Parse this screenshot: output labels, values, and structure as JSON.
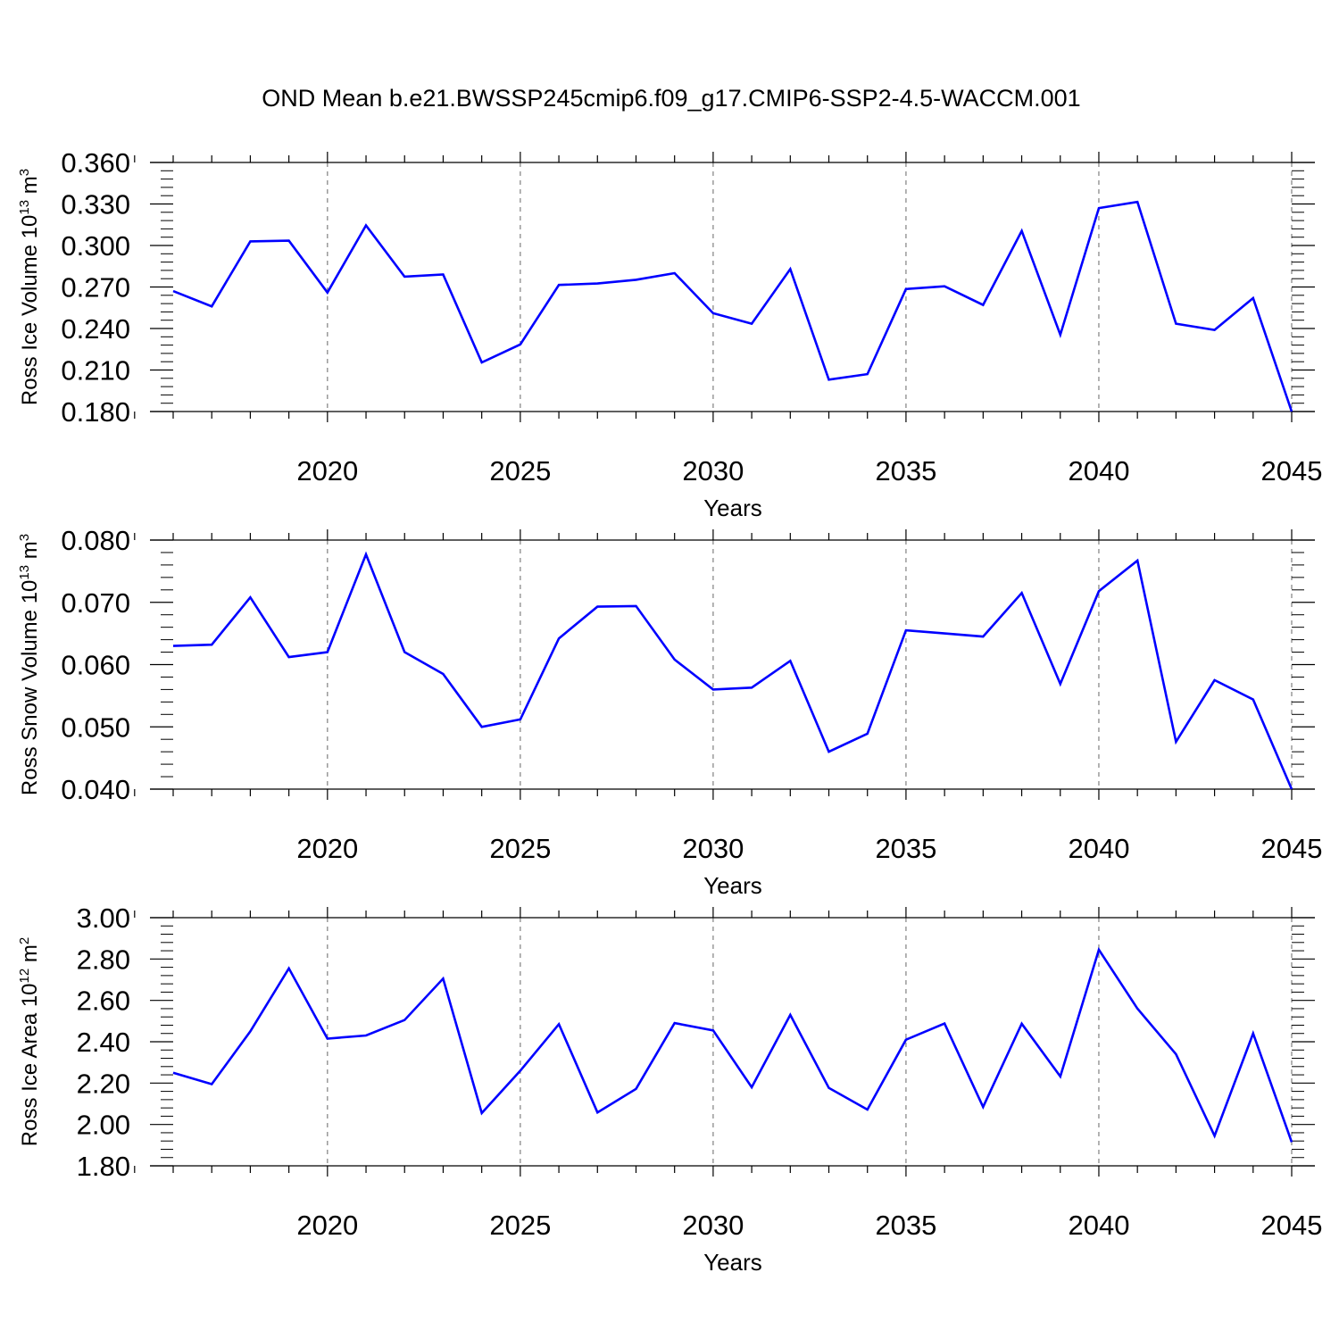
{
  "title": "OND Mean b.e21.BWSSP245cmip6.f09_g17.CMIP6-SSP2-4.5-WACCM.001",
  "colors": {
    "line": "#0000ff",
    "axis": "#000000",
    "grid": "#808080"
  },
  "chart_data": [
    {
      "type": "line",
      "ylabel": {
        "text": "Ross Ice Volume 10",
        "exp": "13",
        "unit": "m",
        "unit_exp": "3"
      },
      "xlabel": "Years",
      "xlim": [
        2016,
        2045
      ],
      "ylim": [
        0.18,
        0.36
      ],
      "yticks": [
        "0.180",
        "0.210",
        "0.240",
        "0.270",
        "0.300",
        "0.330",
        "0.360"
      ],
      "xticks": [
        "2020",
        "2025",
        "2030",
        "2035",
        "2040",
        "2045"
      ],
      "grid": "dashed vertical at major x ticks",
      "x": [
        2016,
        2017,
        2018,
        2019,
        2020,
        2021,
        2022,
        2023,
        2024,
        2025,
        2026,
        2027,
        2028,
        2029,
        2030,
        2031,
        2032,
        2033,
        2034,
        2035,
        2036,
        2037,
        2038,
        2039,
        2040,
        2041,
        2042,
        2043,
        2044,
        2045
      ],
      "values": [
        0.267,
        0.256,
        0.303,
        0.3035,
        0.266,
        0.3145,
        0.2775,
        0.279,
        0.2155,
        0.2285,
        0.2715,
        0.2725,
        0.2752,
        0.28,
        0.251,
        0.2435,
        0.283,
        0.203,
        0.207,
        0.2685,
        0.2705,
        0.257,
        0.3105,
        0.2355,
        0.327,
        0.3315,
        0.2435,
        0.239,
        0.262,
        0.18
      ]
    },
    {
      "type": "line",
      "ylabel": {
        "text": "Ross Snow Volume 10",
        "exp": "13",
        "unit": "m",
        "unit_exp": "3"
      },
      "xlabel": "Years",
      "xlim": [
        2016,
        2045
      ],
      "ylim": [
        0.04,
        0.08
      ],
      "yticks": [
        "0.040",
        "0.050",
        "0.060",
        "0.070",
        "0.080"
      ],
      "xticks": [
        "2020",
        "2025",
        "2030",
        "2035",
        "2040",
        "2045"
      ],
      "grid": "dashed vertical at major x ticks",
      "x": [
        2016,
        2017,
        2018,
        2019,
        2020,
        2021,
        2022,
        2023,
        2024,
        2025,
        2026,
        2027,
        2028,
        2029,
        2030,
        2031,
        2032,
        2033,
        2034,
        2035,
        2036,
        2037,
        2038,
        2039,
        2040,
        2041,
        2042,
        2043,
        2044,
        2045
      ],
      "values": [
        0.063,
        0.0632,
        0.0708,
        0.0612,
        0.062,
        0.0777,
        0.062,
        0.0585,
        0.05,
        0.0512,
        0.0642,
        0.0693,
        0.0694,
        0.0608,
        0.056,
        0.0563,
        0.0606,
        0.046,
        0.0489,
        0.0655,
        0.065,
        0.0645,
        0.0715,
        0.0569,
        0.0718,
        0.0767,
        0.0476,
        0.0575,
        0.0544,
        0.04
      ]
    },
    {
      "type": "line",
      "ylabel": {
        "text": "Ross Ice Area 10",
        "exp": "12",
        "unit": "m",
        "unit_exp": "2"
      },
      "xlabel": "Years",
      "xlim": [
        2016,
        2045
      ],
      "ylim": [
        1.8,
        3.0
      ],
      "yticks": [
        "1.80",
        "2.00",
        "2.20",
        "2.40",
        "2.60",
        "2.80",
        "3.00"
      ],
      "xticks": [
        "2020",
        "2025",
        "2030",
        "2035",
        "2040",
        "2045"
      ],
      "grid": "dashed vertical at major x ticks",
      "x": [
        2016,
        2017,
        2018,
        2019,
        2020,
        2021,
        2022,
        2023,
        2024,
        2025,
        2026,
        2027,
        2028,
        2029,
        2030,
        2031,
        2032,
        2033,
        2034,
        2035,
        2036,
        2037,
        2038,
        2039,
        2040,
        2041,
        2042,
        2043,
        2044,
        2045
      ],
      "values": [
        2.25,
        2.195,
        2.45,
        2.755,
        2.415,
        2.43,
        2.505,
        2.705,
        2.055,
        2.26,
        2.485,
        2.058,
        2.172,
        2.49,
        2.455,
        2.18,
        2.53,
        2.177,
        2.072,
        2.41,
        2.488,
        2.085,
        2.487,
        2.232,
        2.845,
        2.56,
        2.34,
        1.945,
        2.44,
        1.915
      ]
    }
  ]
}
